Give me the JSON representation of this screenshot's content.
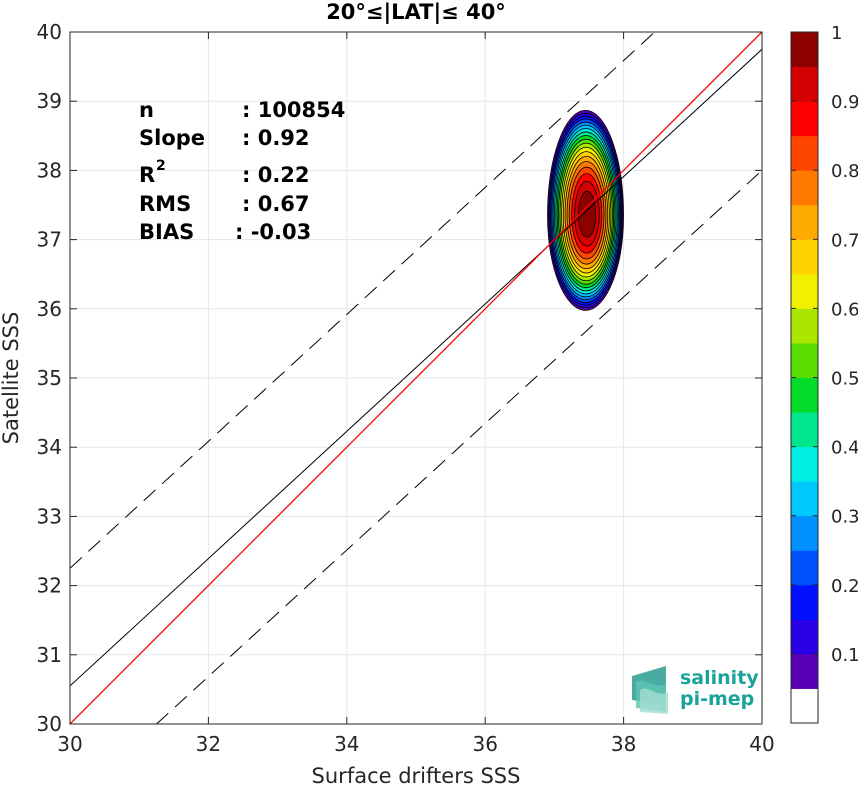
{
  "chart_data": {
    "type": "contour",
    "title": "20°≤|LAT|≤ 40°",
    "xlabel": "Surface drifters SSS",
    "ylabel": "Satellite SSS",
    "xlim": [
      30,
      40
    ],
    "ylim": [
      30,
      40
    ],
    "xticks": [
      30,
      32,
      34,
      36,
      38,
      40
    ],
    "yticks": [
      30,
      31,
      32,
      33,
      34,
      35,
      36,
      37,
      38,
      39,
      40
    ],
    "grid": true,
    "stats": [
      {
        "label": "n",
        "value": ": 100854"
      },
      {
        "label": "Slope",
        "value": ": 0.92"
      },
      {
        "label": "R",
        "sup": "2",
        "value": ": 0.22"
      },
      {
        "label": "RMS",
        "value": ": 0.67"
      },
      {
        "label": "BIAS",
        "value": ": -0.03"
      }
    ],
    "one_to_one_line": {
      "x": [
        30,
        40
      ],
      "y": [
        30,
        40
      ],
      "color": "#ff0000"
    },
    "regression_line": {
      "x": [
        30,
        40
      ],
      "y": [
        30.55,
        39.75
      ],
      "color": "#000000"
    },
    "dashed_lines": [
      {
        "x": [
          30,
          38.45
        ],
        "y": [
          32.25,
          40
        ]
      },
      {
        "x": [
          31.25,
          40
        ],
        "y": [
          30,
          38.0
        ]
      }
    ],
    "density_center": {
      "x": 37.45,
      "y": 37.35
    },
    "contour_levels": [
      0.05,
      0.1,
      0.15,
      0.2,
      0.25,
      0.3,
      0.35,
      0.4,
      0.45,
      0.5,
      0.55,
      0.6,
      0.65,
      0.7,
      0.75,
      0.8,
      0.85,
      0.9,
      0.95
    ],
    "colorbar": {
      "ticks": [
        0.1,
        0.2,
        0.3,
        0.4,
        0.5,
        0.6,
        0.7,
        0.8,
        0.9,
        1
      ],
      "tick_labels": [
        "0.1",
        "0.2",
        "0.3",
        "0.4",
        "0.5",
        "0.6",
        "0.7",
        "0.8",
        "0.9",
        "1"
      ],
      "range": [
        0,
        1
      ],
      "colors": [
        "#ffffff",
        "#5a00b4",
        "#2a00e6",
        "#0010ff",
        "#0050ff",
        "#0090ff",
        "#00c8ff",
        "#00f0e6",
        "#00e68c",
        "#00dc28",
        "#5adc00",
        "#aae600",
        "#f0f000",
        "#ffd200",
        "#ffaa00",
        "#ff7800",
        "#ff4600",
        "#ff0000",
        "#d20000",
        "#8c0000"
      ]
    }
  },
  "logo": {
    "line1": "salinity",
    "line2": "pi-mep"
  }
}
